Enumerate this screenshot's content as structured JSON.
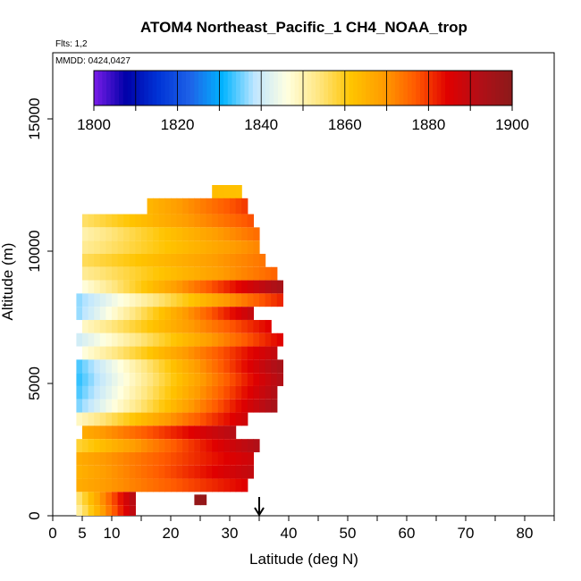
{
  "chart_data": {
    "type": "heatmap",
    "title": "ATOM4 Northeast_Pacific_1 CH4_NOAA_trop",
    "subtitle_flights": "Flts: 1,2",
    "subtitle_dates": "MMDD: 0424,0427",
    "xlabel": "Latitude (deg N)",
    "ylabel": "Altitude (m)",
    "xlim": [
      0,
      85
    ],
    "ylim": [
      0,
      17500
    ],
    "x_ticks": [
      "0",
      "5",
      "10",
      "20",
      "30",
      "40",
      "50",
      "60",
      "70",
      "80"
    ],
    "x_tick_values": [
      0,
      5,
      10,
      20,
      30,
      40,
      50,
      60,
      70,
      80
    ],
    "y_ticks": [
      "0",
      "5000",
      "10000",
      "15000"
    ],
    "y_tick_values": [
      0,
      5000,
      10000,
      15000
    ],
    "colorbar": {
      "min": 1800,
      "max": 1900,
      "tick_labels": [
        "1800",
        "1820",
        "1840",
        "1860",
        "1880",
        "1900"
      ],
      "tick_values": [
        1800,
        1820,
        1840,
        1860,
        1880,
        1900
      ],
      "colors": [
        "#7a1de8",
        "#0000a8",
        "#0033d6",
        "#1e63e8",
        "#00b4ff",
        "#bfe6ff",
        "#ffffe0",
        "#ffe680",
        "#ffc400",
        "#ff9c00",
        "#ff5a00",
        "#e00000",
        "#b20f17",
        "#8b1a1a"
      ]
    },
    "marker_latitude": 35,
    "rows": [
      {
        "y0": 11800,
        "y1": 12500,
        "x0": 27,
        "x1": 32,
        "v0": 1863,
        "v1": 1862
      },
      {
        "y0": 11400,
        "y1": 12000,
        "x0": 16,
        "x1": 33,
        "v0": 1864,
        "v1": 1880
      },
      {
        "y0": 10900,
        "y1": 11400,
        "x0": 5,
        "x1": 34,
        "v0": 1855,
        "v1": 1878
      },
      {
        "y0": 10400,
        "y1": 10900,
        "x0": 5,
        "x1": 35,
        "v0": 1850,
        "v1": 1875
      },
      {
        "y0": 9900,
        "y1": 10400,
        "x0": 5,
        "x1": 35,
        "v0": 1852,
        "v1": 1872
      },
      {
        "y0": 9400,
        "y1": 9900,
        "x0": 5,
        "x1": 36,
        "v0": 1856,
        "v1": 1874
      },
      {
        "y0": 8900,
        "y1": 9400,
        "x0": 5,
        "x1": 38,
        "v0": 1852,
        "v1": 1876
      },
      {
        "y0": 8400,
        "y1": 8900,
        "x0": 5,
        "x1": 39,
        "v0": 1846,
        "v1": 1895
      },
      {
        "y0": 7900,
        "y1": 8400,
        "x0": 4,
        "x1": 39,
        "v0": 1836,
        "v1": 1882
      },
      {
        "y0": 7400,
        "y1": 7900,
        "x0": 4,
        "x1": 34,
        "v0": 1836,
        "v1": 1890
      },
      {
        "y0": 6900,
        "y1": 7400,
        "x0": 5,
        "x1": 37,
        "v0": 1848,
        "v1": 1885
      },
      {
        "y0": 6400,
        "y1": 6900,
        "x0": 4,
        "x1": 39,
        "v0": 1840,
        "v1": 1885
      },
      {
        "y0": 5900,
        "y1": 6400,
        "x0": 5,
        "x1": 38,
        "v0": 1846,
        "v1": 1890
      },
      {
        "y0": 5400,
        "y1": 5900,
        "x0": 4,
        "x1": 39,
        "v0": 1833,
        "v1": 1895
      },
      {
        "y0": 4900,
        "y1": 5400,
        "x0": 4,
        "x1": 39,
        "v0": 1832,
        "v1": 1893
      },
      {
        "y0": 4400,
        "y1": 4900,
        "x0": 4,
        "x1": 38,
        "v0": 1833,
        "v1": 1893
      },
      {
        "y0": 3900,
        "y1": 4400,
        "x0": 4,
        "x1": 38,
        "v0": 1835,
        "v1": 1895
      },
      {
        "y0": 3400,
        "y1": 3900,
        "x0": 4,
        "x1": 33,
        "v0": 1848,
        "v1": 1888
      },
      {
        "y0": 2900,
        "y1": 3400,
        "x0": 5,
        "x1": 31,
        "v0": 1866,
        "v1": 1892
      },
      {
        "y0": 2400,
        "y1": 2900,
        "x0": 4,
        "x1": 35,
        "v0": 1858,
        "v1": 1893
      },
      {
        "y0": 1900,
        "y1": 2400,
        "x0": 4,
        "x1": 34,
        "v0": 1866,
        "v1": 1888
      },
      {
        "y0": 1400,
        "y1": 1900,
        "x0": 4,
        "x1": 34,
        "v0": 1865,
        "v1": 1890
      },
      {
        "y0": 900,
        "y1": 1400,
        "x0": 4,
        "x1": 33,
        "v0": 1866,
        "v1": 1885
      },
      {
        "y0": 400,
        "y1": 900,
        "x0": 4,
        "x1": 14,
        "v0": 1853,
        "v1": 1893
      },
      {
        "y0": 0,
        "y1": 400,
        "x0": 4,
        "x1": 14,
        "v0": 1850,
        "v1": 1892
      },
      {
        "y0": 400,
        "y1": 800,
        "x0": 24,
        "x1": 26,
        "v0": 1898,
        "v1": 1898
      }
    ]
  }
}
